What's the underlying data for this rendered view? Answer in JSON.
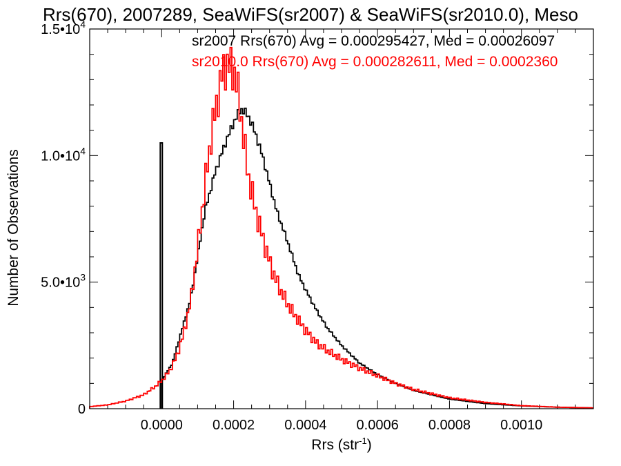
{
  "chart_data": {
    "type": "line",
    "title": "Rrs(670), 2007289, SeaWiFS(sr2007) & SeaWiFS(sr2010.0), Meso",
    "xlabel": "Rrs (str",
    "xlabel_sup": "-1",
    "xlabel_close": ")",
    "ylabel": "Number of Observations",
    "xlim": [
      -0.0002,
      0.0012
    ],
    "ylim": [
      0,
      15000
    ],
    "grid": false,
    "legend_placement": "top-right",
    "x_ticks": [
      {
        "value": 0.0,
        "label": "0.0000"
      },
      {
        "value": 0.0002,
        "label": "0.0002"
      },
      {
        "value": 0.0004,
        "label": "0.0004"
      },
      {
        "value": 0.0006,
        "label": "0.0006"
      },
      {
        "value": 0.0008,
        "label": "0.0008"
      },
      {
        "value": 0.001,
        "label": "0.0010"
      }
    ],
    "y_ticks": [
      {
        "value": 0,
        "mant": "0",
        "exp": ""
      },
      {
        "value": 5000,
        "mant": "5.0•10",
        "exp": "3"
      },
      {
        "value": 10000,
        "mant": "1.0•10",
        "exp": "4"
      },
      {
        "value": 15000,
        "mant": "1.5•10",
        "exp": "4"
      }
    ],
    "series": [
      {
        "name": "sr2007 Rrs(670) Avg = 0.000295427, Med = 0.00026097",
        "color": "#000000",
        "spike": {
          "x": 0.0,
          "y": 10500
        },
        "x": [
          0.0,
          3e-05,
          5e-05,
          8e-05,
          0.0001,
          0.00012,
          0.00015,
          0.00018,
          0.0002,
          0.00022,
          0.00024,
          0.00026,
          0.00028,
          0.0003,
          0.00032,
          0.00035,
          0.00038,
          0.0004,
          0.00043,
          0.00046,
          0.0005,
          0.00055,
          0.0006,
          0.00065,
          0.0007,
          0.0008,
          0.0009,
          0.001,
          0.0011,
          0.0012
        ],
        "y": [
          1100,
          1800,
          2800,
          4300,
          6000,
          7800,
          9400,
          10600,
          11300,
          11850,
          11600,
          10900,
          10000,
          8900,
          7800,
          6600,
          5300,
          4700,
          3900,
          3200,
          2500,
          1800,
          1350,
          1000,
          720,
          380,
          200,
          110,
          60,
          30
        ]
      },
      {
        "name": "sr2010.0 Rrs(670) Avg = 0.000282611, Med = 0.0002360",
        "color": "#ff0000",
        "x": [
          -0.0002,
          -0.00015,
          -0.0001,
          -5e-05,
          -2e-05,
          0.0,
          2e-05,
          4e-05,
          6e-05,
          8e-05,
          0.0001,
          0.00012,
          0.00014,
          0.00016,
          0.00017,
          0.00018,
          0.00019,
          0.0002,
          0.00021,
          0.00022,
          0.00023,
          0.00024,
          0.00026,
          0.00028,
          0.0003,
          0.00032,
          0.00034,
          0.00036,
          0.00038,
          0.0004,
          0.00043,
          0.00046,
          0.0005,
          0.00055,
          0.0006,
          0.00065,
          0.0007,
          0.0008,
          0.0009,
          0.001,
          0.0011,
          0.0012
        ],
        "y": [
          80,
          150,
          300,
          550,
          850,
          1100,
          1450,
          2000,
          2900,
          4200,
          6300,
          8800,
          11000,
          12600,
          13300,
          13600,
          13500,
          13400,
          12700,
          11700,
          10400,
          9300,
          7900,
          6800,
          5800,
          5000,
          4400,
          3900,
          3500,
          3100,
          2600,
          2300,
          1950,
          1600,
          1300,
          1000,
          760,
          430,
          250,
          120,
          60,
          30
        ]
      }
    ]
  }
}
